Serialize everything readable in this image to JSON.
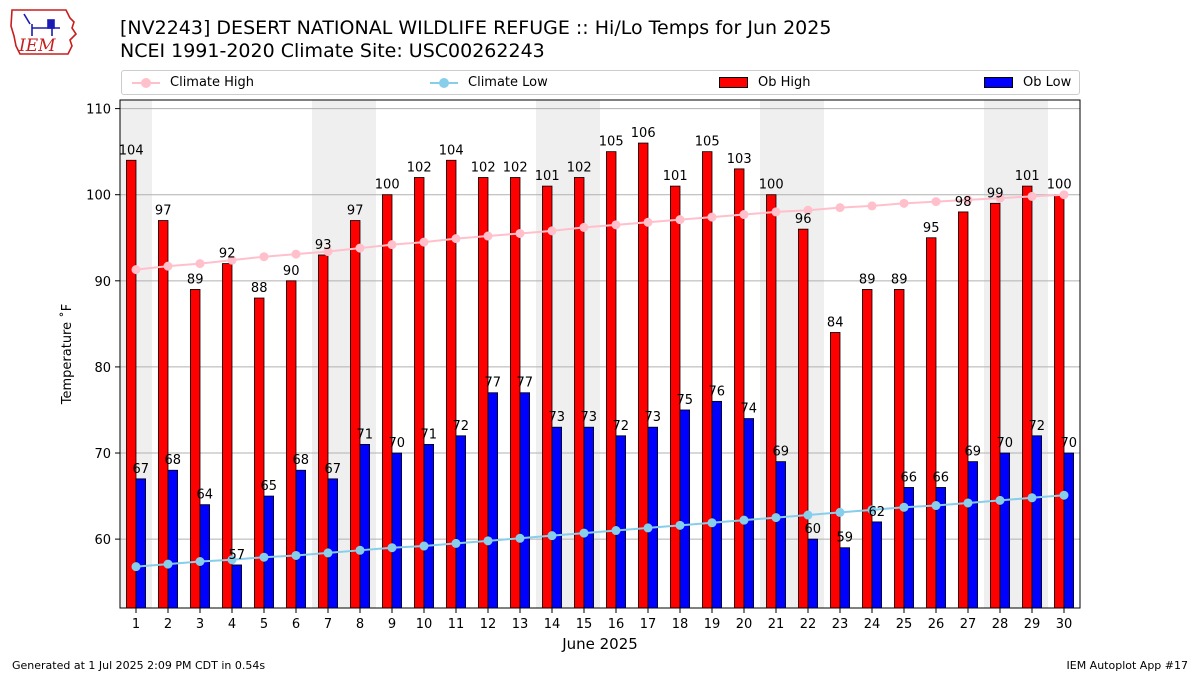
{
  "header": {
    "title_line1": "[NV2243] DESERT NATIONAL WILDLIFE REFUGE :: Hi/Lo Temps for Jun 2025",
    "title_line2": "NCEI 1991-2020 Climate Site: USC00262243",
    "logo_text": "IEM"
  },
  "legend": {
    "items": [
      {
        "label": "Climate High",
        "kind": "line",
        "color": "#ffc0cb"
      },
      {
        "label": "Climate Low",
        "kind": "line",
        "color": "#87ceeb"
      },
      {
        "label": "Ob High",
        "kind": "bar",
        "color": "#ff0000"
      },
      {
        "label": "Ob Low",
        "kind": "bar",
        "color": "#0000ff"
      }
    ]
  },
  "footer": {
    "left": "Generated at 1 Jul 2025 2:09 PM CDT in 0.54s",
    "right": "IEM Autoplot App #17"
  },
  "chart_data": {
    "type": "bar",
    "title": "[NV2243] DESERT NATIONAL WILDLIFE REFUGE :: Hi/Lo Temps for Jun 2025",
    "subtitle": "NCEI 1991-2020 Climate Site: USC00262243",
    "xlabel": "June 2025",
    "ylabel": "Temperature ˚F",
    "ylim": [
      52,
      111
    ],
    "yticks": [
      60,
      70,
      80,
      90,
      100,
      110
    ],
    "grid": "y",
    "legend_position": "top",
    "categories": [
      "1",
      "2",
      "3",
      "4",
      "5",
      "6",
      "7",
      "8",
      "9",
      "10",
      "11",
      "12",
      "13",
      "14",
      "15",
      "16",
      "17",
      "18",
      "19",
      "20",
      "21",
      "22",
      "23",
      "24",
      "25",
      "26",
      "27",
      "28",
      "29",
      "30"
    ],
    "weekend_days": [
      1,
      7,
      8,
      14,
      15,
      21,
      22,
      28,
      29
    ],
    "series": [
      {
        "name": "Ob High",
        "type": "bar",
        "color": "#ff0000",
        "values": [
          104,
          97,
          89,
          92,
          88,
          90,
          93,
          97,
          100,
          102,
          104,
          102,
          102,
          101,
          102,
          105,
          106,
          101,
          105,
          103,
          100,
          96,
          84,
          89,
          89,
          95,
          98,
          99,
          101,
          100
        ]
      },
      {
        "name": "Ob Low",
        "type": "bar",
        "color": "#0000ff",
        "values": [
          67,
          68,
          64,
          57,
          65,
          68,
          67,
          71,
          70,
          71,
          72,
          77,
          77,
          73,
          73,
          72,
          73,
          75,
          76,
          74,
          69,
          60,
          59,
          62,
          66,
          66,
          69,
          70,
          72,
          70
        ]
      },
      {
        "name": "Climate High",
        "type": "line",
        "color": "#ffc0cb",
        "values": [
          91.3,
          91.7,
          92.0,
          92.4,
          92.8,
          93.1,
          93.4,
          93.8,
          94.2,
          94.5,
          94.9,
          95.2,
          95.5,
          95.8,
          96.2,
          96.5,
          96.8,
          97.1,
          97.4,
          97.7,
          98.0,
          98.2,
          98.5,
          98.7,
          99.0,
          99.2,
          99.4,
          99.6,
          99.8,
          100.0
        ]
      },
      {
        "name": "Climate Low",
        "type": "line",
        "color": "#87ceeb",
        "values": [
          56.8,
          57.1,
          57.4,
          57.6,
          57.9,
          58.1,
          58.4,
          58.7,
          59.0,
          59.2,
          59.5,
          59.8,
          60.1,
          60.4,
          60.7,
          61.0,
          61.3,
          61.6,
          61.9,
          62.2,
          62.5,
          62.8,
          63.1,
          63.4,
          63.7,
          63.9,
          64.2,
          64.5,
          64.8,
          65.1
        ]
      }
    ]
  }
}
